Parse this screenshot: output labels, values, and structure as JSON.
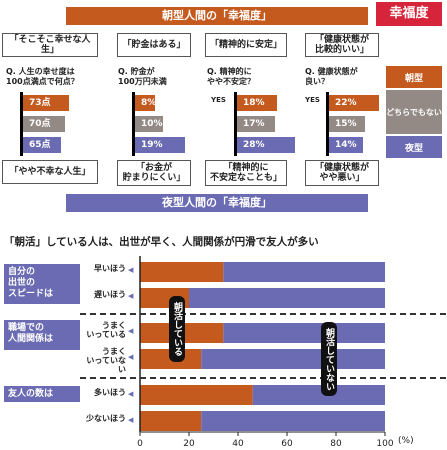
{
  "badge": "幸福度",
  "morning_title": "朝型人間の「幸福度」",
  "night_title": "夜型人間の「幸福度」",
  "top_statements": [
    "「そこそこ幸せな人生」",
    "「貯金はある」",
    "「精神的に安定」",
    "「健康状態が\n比較的いい」"
  ],
  "bottom_statements": [
    "「やや不幸な人生」",
    "「お金が\n貯まりにくい」",
    "「精神的に\n不安定なことも」",
    "「健康状態が\nやや悪い」"
  ],
  "questions": [
    "Q. 人生の幸せ度は\n100点満点で何点？",
    "Q. 貯金が\n100万円未満",
    "Q. 精神的に\nやや不安定？",
    "Q. 健康状態が\n良い？"
  ],
  "yes_label": "YES",
  "legend": {
    "morning": "朝型",
    "neutral": "どちらでもない",
    "night": "夜型"
  },
  "colors": {
    "morning": "#c55a1f",
    "neutral": "#948a85",
    "night": "#6b6bb3",
    "badge": "#d6243a"
  },
  "chart2_title": "「朝活」している人は、出世が早く、人間関係が円滑で友人が多い",
  "groups": [
    {
      "label": "自分の\n出世の\nスピードは",
      "rows": [
        "早いほう",
        "遅いほう"
      ]
    },
    {
      "label": "職場での\n人間関係は",
      "rows": [
        "うまく\nいっている",
        "うまく\nいっていない"
      ]
    },
    {
      "label": "友人の数は",
      "rows": [
        "多いほう",
        "少ないほう"
      ]
    }
  ],
  "tag_active": "朝活している",
  "tag_inactive": "朝活していない",
  "axis_unit": "(%)",
  "chart_data": [
    {
      "type": "bar",
      "title": "",
      "categories": [
        "Q. 人生の幸せ度は100点満点で何点？",
        "Q. 貯金が100万円未満",
        "Q. 精神的にやや不安定？",
        "Q. 健康状態が良い？"
      ],
      "series": [
        {
          "name": "朝型",
          "values": [
            "73点",
            "8%",
            "18%",
            "22%"
          ]
        },
        {
          "name": "どちらでもない",
          "values": [
            "70点",
            "10%",
            "17%",
            "15%"
          ]
        },
        {
          "name": "夜型",
          "values": [
            "65点",
            "19%",
            "28%",
            "14%"
          ]
        }
      ]
    },
    {
      "type": "bar",
      "title": "「朝活」している人は、出世が早く、人間関係が円滑で友人が多い",
      "orientation": "horizontal-stacked",
      "categories": [
        "早いほう",
        "遅いほう",
        "うまくいっている",
        "うまくいっていない",
        "多いほう",
        "少ないほう"
      ],
      "series": [
        {
          "name": "朝活している",
          "values": [
            34,
            20,
            34,
            25,
            46,
            25
          ]
        },
        {
          "name": "朝活していない",
          "values": [
            66,
            80,
            66,
            75,
            54,
            75
          ]
        }
      ],
      "xlim": [
        0,
        100
      ],
      "x_ticks": [
        "0",
        "20",
        "40",
        "60",
        "80",
        "100"
      ],
      "xlabel": "(%)"
    }
  ]
}
